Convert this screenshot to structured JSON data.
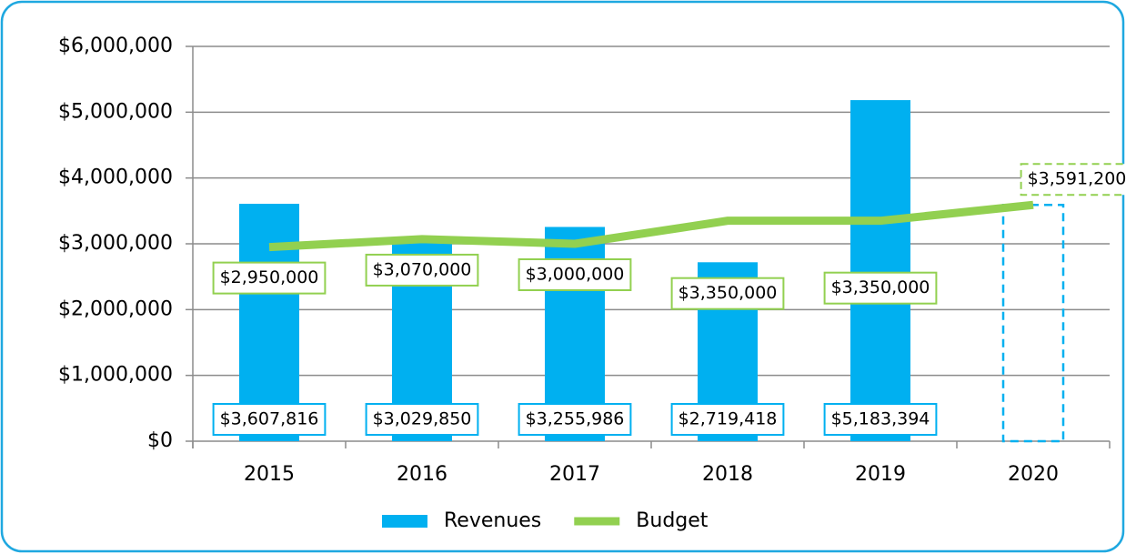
{
  "chart_data": {
    "type": "bar",
    "categories": [
      "2015",
      "2016",
      "2017",
      "2018",
      "2019",
      "2020"
    ],
    "series": [
      {
        "name": "Revenues",
        "type": "bar",
        "color": "#00b0f0",
        "values": [
          3607816,
          3029850,
          3255986,
          2719418,
          5183394,
          null
        ],
        "value_labels": [
          "$3,607,816",
          "$3,029,850",
          "$3,255,986",
          "$2,719,418",
          "$5,183,394",
          null
        ]
      },
      {
        "name": "Budget",
        "type": "line",
        "color": "#92d050",
        "values": [
          2950000,
          3070000,
          3000000,
          3350000,
          3350000,
          3591200
        ],
        "value_labels": [
          "$2,950,000",
          "$3,070,000",
          "$3,000,000",
          "$3,350,000",
          "$3,350,000",
          "$3,591,200"
        ]
      }
    ],
    "ylim": [
      0,
      6000000
    ],
    "yticks": [
      {
        "value": 0,
        "label": "$0"
      },
      {
        "value": 1000000,
        "label": "$1,000,000"
      },
      {
        "value": 2000000,
        "label": "$2,000,000"
      },
      {
        "value": 3000000,
        "label": "$3,000,000"
      },
      {
        "value": 4000000,
        "label": "$4,000,000"
      },
      {
        "value": 5000000,
        "label": "$5,000,000"
      },
      {
        "value": 6000000,
        "label": "$6,000,000"
      }
    ],
    "grid": true,
    "legend": "bottom"
  }
}
